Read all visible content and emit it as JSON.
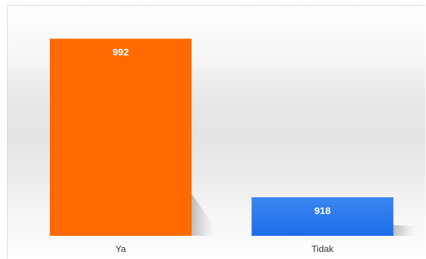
{
  "chart_data": {
    "type": "bar",
    "title": "",
    "xlabel": "",
    "ylabel": "",
    "categories": [
      "Ya",
      "Tidak"
    ],
    "values": [
      992,
      918
    ],
    "ylim": [
      900,
      995
    ],
    "grid": false,
    "legend": "none",
    "colors": [
      "#ff6a00",
      "#3a86f2"
    ],
    "colors_bottom": [
      "#ff6a00",
      "#1c6de8"
    ],
    "value_label_color": "#ffffff"
  }
}
